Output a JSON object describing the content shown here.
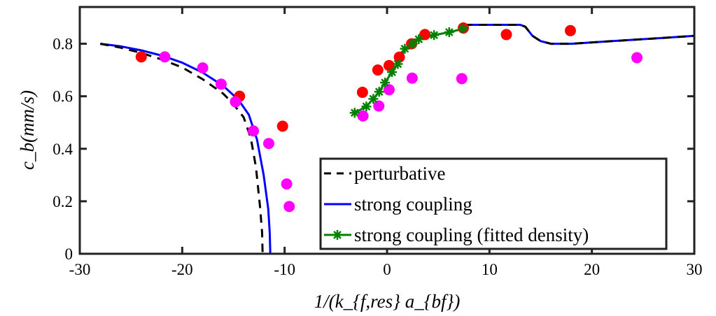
{
  "chart_data": {
    "type": "line",
    "xlabel": "1/(k_{f,res} a_{bf})",
    "ylabel": "c_b(mm/s)",
    "xlim": [
      -30,
      30
    ],
    "ylim": [
      0,
      0.94
    ],
    "xticks": [
      -30,
      -20,
      -10,
      0,
      10,
      20,
      30
    ],
    "xtick_labels": [
      "-30",
      "-20",
      "-10",
      "0",
      "10",
      "20",
      "30"
    ],
    "yticks": [
      0,
      0.2,
      0.4,
      0.6,
      0.8
    ],
    "ytick_labels": [
      "0",
      "0.2",
      "0.4",
      "0.6",
      "0.8"
    ],
    "grid": false,
    "legend_position": "bottom-right",
    "series": [
      {
        "name": "perturbative",
        "style": "dashed",
        "color": "#000000",
        "branches": [
          [
            [
              -28,
              0.8
            ],
            [
              -26,
              0.785
            ],
            [
              -24,
              0.765
            ],
            [
              -22,
              0.74
            ],
            [
              -20,
              0.71
            ],
            [
              -18,
              0.665
            ],
            [
              -16,
              0.61
            ],
            [
              -15,
              0.57
            ],
            [
              -14,
              0.52
            ],
            [
              -13.3,
              0.44
            ],
            [
              -12.8,
              0.33
            ],
            [
              -12.4,
              0.18
            ],
            [
              -12.2,
              0.08
            ],
            [
              -12.15,
              0
            ]
          ],
          [
            [
              7.5,
              0.872
            ],
            [
              13,
              0.872
            ],
            [
              13.5,
              0.865
            ],
            [
              14.2,
              0.83
            ],
            [
              15,
              0.81
            ],
            [
              16,
              0.8
            ],
            [
              18,
              0.8
            ],
            [
              22,
              0.81
            ],
            [
              26,
              0.82
            ],
            [
              30,
              0.83
            ]
          ]
        ]
      },
      {
        "name": "strong coupling",
        "style": "solid",
        "color": "#0000ff",
        "branches": [
          [
            [
              -28,
              0.8
            ],
            [
              -26,
              0.79
            ],
            [
              -24,
              0.775
            ],
            [
              -22,
              0.755
            ],
            [
              -20,
              0.728
            ],
            [
              -18,
              0.69
            ],
            [
              -16,
              0.64
            ],
            [
              -14.5,
              0.586
            ],
            [
              -13.5,
              0.53
            ],
            [
              -12.7,
              0.435
            ],
            [
              -12.05,
              0.3
            ],
            [
              -11.6,
              0.17
            ],
            [
              -11.45,
              0.08
            ],
            [
              -11.4,
              0
            ]
          ],
          [
            [
              7.5,
              0.872
            ],
            [
              13,
              0.872
            ],
            [
              13.5,
              0.865
            ],
            [
              14.2,
              0.83
            ],
            [
              15,
              0.81
            ],
            [
              16,
              0.8
            ],
            [
              18,
              0.8
            ],
            [
              22,
              0.81
            ],
            [
              26,
              0.82
            ],
            [
              30,
              0.83
            ]
          ]
        ]
      },
      {
        "name": "strong coupling (fitted density)",
        "style": "solid-star",
        "color": "#008000",
        "points": [
          [
            -3.16,
            0.537
          ],
          [
            -2.02,
            0.561
          ],
          [
            -1.34,
            0.59
          ],
          [
            -0.77,
            0.617
          ],
          [
            -0.2,
            0.652
          ],
          [
            0.48,
            0.692
          ],
          [
            1.05,
            0.723
          ],
          [
            1.74,
            0.781
          ],
          [
            2.5,
            0.8
          ],
          [
            3.1,
            0.817
          ],
          [
            4.59,
            0.833
          ],
          [
            6.07,
            0.844
          ],
          [
            7.43,
            0.857
          ]
        ]
      }
    ],
    "scatter": [
      {
        "color": "#ff0000",
        "points": [
          [
            -24.0,
            0.75
          ],
          [
            -14.4,
            0.6
          ],
          [
            -10.2,
            0.486
          ],
          [
            -2.4,
            0.615
          ],
          [
            -0.9,
            0.7
          ],
          [
            0.2,
            0.717
          ],
          [
            1.2,
            0.749
          ],
          [
            2.4,
            0.8
          ],
          [
            3.7,
            0.835
          ],
          [
            7.45,
            0.86
          ],
          [
            11.65,
            0.835
          ],
          [
            17.9,
            0.85
          ]
        ]
      },
      {
        "color": "#ff00ff",
        "points": [
          [
            -21.7,
            0.75
          ],
          [
            -18.0,
            0.708
          ],
          [
            -16.2,
            0.646
          ],
          [
            -14.8,
            0.579
          ],
          [
            -13.05,
            0.468
          ],
          [
            -11.55,
            0.42
          ],
          [
            -9.8,
            0.266
          ],
          [
            -9.55,
            0.18
          ],
          [
            -2.35,
            0.525
          ],
          [
            -0.8,
            0.563
          ],
          [
            0.2,
            0.625
          ],
          [
            2.45,
            0.669
          ],
          [
            7.3,
            0.667
          ],
          [
            24.4,
            0.747
          ]
        ]
      }
    ]
  }
}
